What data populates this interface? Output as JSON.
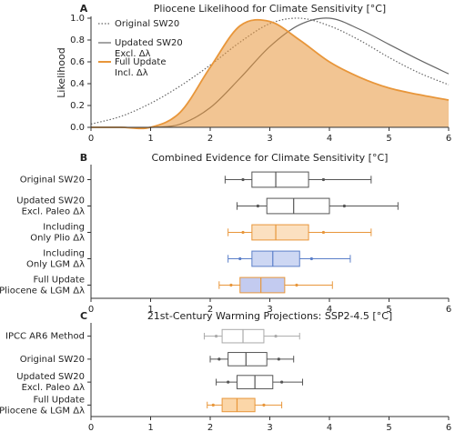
{
  "chart_data": [
    {
      "type": "line",
      "label": "A",
      "title": "Pliocene Likelihood for Climate Sensitivity [°C]",
      "ylabel": "Likelihood",
      "x": [
        0,
        0.5,
        1,
        1.5,
        2,
        2.5,
        3,
        3.5,
        4,
        4.5,
        5,
        5.5,
        6
      ],
      "series": [
        {
          "name": "Original SW20",
          "color": "#666666",
          "style": "dotted",
          "fill": false,
          "values": [
            0.03,
            0.1,
            0.22,
            0.38,
            0.57,
            0.78,
            0.95,
            1.0,
            0.93,
            0.8,
            0.64,
            0.5,
            0.39
          ]
        },
        {
          "name": "Updated SW20\nExcl. Δλ",
          "color": "#666666",
          "style": "solid",
          "fill": false,
          "values": [
            0,
            0,
            0,
            0.03,
            0.18,
            0.45,
            0.74,
            0.94,
            1.0,
            0.9,
            0.76,
            0.62,
            0.49
          ]
        },
        {
          "name": "Full Update\nIncl. Δλ",
          "color": "#e8963a",
          "style": "solid",
          "fill": true,
          "values": [
            0,
            0,
            0,
            0.14,
            0.55,
            0.93,
            0.97,
            0.8,
            0.6,
            0.46,
            0.36,
            0.3,
            0.25
          ]
        }
      ],
      "xlim": [
        0,
        6
      ],
      "xticks": [
        0,
        1,
        2,
        3,
        4,
        5,
        6
      ],
      "ylim": [
        0,
        1
      ],
      "yticks": [
        {
          "value": 0,
          "label": "0.0"
        },
        0.2,
        0.4,
        0.6,
        0.8,
        {
          "value": 1,
          "label": "1.0"
        }
      ],
      "legend": "upper left"
    },
    {
      "type": "box",
      "label": "B",
      "title": "Combined Evidence for Climate Sensitivity [°C]",
      "categories": [
        "Original SW20",
        "Updated SW20\nExcl. Paleo Δλ",
        "Including\nOnly Plio Δλ",
        "Including\nOnly LGM Δλ",
        "Full Update\nPliocene & LGM Δλ"
      ],
      "boxes": [
        {
          "whisker_low": 2.25,
          "dot_low": 2.55,
          "q1": 2.7,
          "median": 3.1,
          "q3": 3.65,
          "dot_high": 3.9,
          "whisker_high": 4.7,
          "color": "#555555",
          "fill": "#ffffff"
        },
        {
          "whisker_low": 2.45,
          "dot_low": 2.8,
          "q1": 2.95,
          "median": 3.4,
          "q3": 4.0,
          "dot_high": 4.25,
          "whisker_high": 5.15,
          "color": "#555555",
          "fill": "#ffffff"
        },
        {
          "whisker_low": 2.3,
          "dot_low": 2.55,
          "q1": 2.7,
          "median": 3.1,
          "q3": 3.65,
          "dot_high": 3.9,
          "whisker_high": 4.7,
          "color": "#e8963a",
          "fill": "#fbe0c0"
        },
        {
          "whisker_low": 2.3,
          "dot_low": 2.5,
          "q1": 2.7,
          "median": 3.05,
          "q3": 3.5,
          "dot_high": 3.7,
          "whisker_high": 4.35,
          "color": "#5b7fc9",
          "fill": "#cdd7f3"
        },
        {
          "whisker_low": 2.15,
          "dot_low": 2.35,
          "q1": 2.5,
          "median": 2.85,
          "q3": 3.25,
          "dot_high": 3.45,
          "whisker_high": 4.05,
          "color": "#e8963a",
          "fill": "#c3cbf0"
        }
      ],
      "xlim": [
        0,
        6
      ],
      "xticks": [
        0,
        1,
        2,
        3,
        4,
        5,
        6
      ]
    },
    {
      "type": "box",
      "label": "C",
      "title": "21st-Century Warming Projections: SSP2-4.5 [°C]",
      "categories": [
        "IPCC AR6 Method",
        "Original SW20",
        "Updated SW20\nExcl. Paleo Δλ",
        "Full Update\nPliocene & LGM Δλ"
      ],
      "boxes": [
        {
          "whisker_low": 1.9,
          "dot_low": 2.1,
          "q1": 2.2,
          "median": 2.55,
          "q3": 2.9,
          "dot_high": 3.1,
          "whisker_high": 3.5,
          "color": "#aaaaaa",
          "fill": "#ffffff"
        },
        {
          "whisker_low": 2.0,
          "dot_low": 2.15,
          "q1": 2.3,
          "median": 2.6,
          "q3": 2.95,
          "dot_high": 3.15,
          "whisker_high": 3.4,
          "color": "#555555",
          "fill": "#ffffff"
        },
        {
          "whisker_low": 2.1,
          "dot_low": 2.3,
          "q1": 2.45,
          "median": 2.75,
          "q3": 3.05,
          "dot_high": 3.2,
          "whisker_high": 3.55,
          "color": "#555555",
          "fill": "#ffffff"
        },
        {
          "whisker_low": 1.95,
          "dot_low": 2.05,
          "q1": 2.2,
          "median": 2.45,
          "q3": 2.75,
          "dot_high": 2.9,
          "whisker_high": 3.2,
          "color": "#e8963a",
          "fill": "#fbd6a8"
        }
      ],
      "xlim": [
        0,
        6
      ],
      "xticks": [
        0,
        1,
        2,
        3,
        4,
        5,
        6
      ]
    }
  ]
}
